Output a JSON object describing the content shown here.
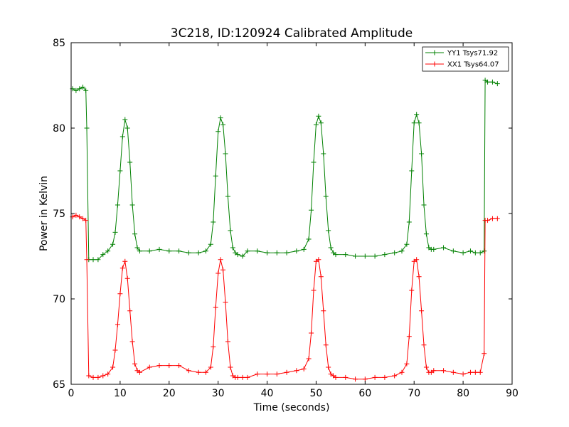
{
  "chart_data": {
    "type": "line",
    "title": "3C218, ID:120924 Calibrated Amplitude",
    "xlabel": "Time (seconds)",
    "ylabel": "Power in Kelvin",
    "xlim": [
      0,
      90
    ],
    "ylim": [
      65,
      85
    ],
    "xticks": [
      "0",
      "10",
      "20",
      "30",
      "40",
      "50",
      "60",
      "70",
      "80",
      "90"
    ],
    "yticks": [
      "65",
      "70",
      "75",
      "80",
      "85"
    ],
    "grid": false,
    "legend_position": "top-right",
    "series": [
      {
        "name": "YY1 Tsys71.92",
        "color": "#008000",
        "marker": "+",
        "x": [
          0.3,
          1,
          1.7,
          2.4,
          3,
          3.2,
          3.6,
          4.5,
          5.5,
          6.5,
          7.5,
          8.5,
          9,
          9.5,
          10,
          10.5,
          11,
          11.5,
          12,
          12.5,
          13,
          13.5,
          14,
          16,
          18,
          20,
          22,
          24,
          26,
          27.5,
          28.5,
          29,
          29.5,
          30,
          30.5,
          31,
          31.5,
          32,
          32.5,
          33,
          33.5,
          34,
          35,
          36,
          38,
          40,
          42,
          44,
          46,
          47.5,
          48.5,
          49,
          49.5,
          50,
          50.5,
          51,
          51.5,
          52,
          52.5,
          53,
          53.5,
          54,
          56,
          58,
          60,
          62,
          64,
          66,
          67.5,
          68.5,
          69,
          69.5,
          70,
          70.5,
          71,
          71.5,
          72,
          72.5,
          73,
          73.5,
          74,
          76,
          78,
          80,
          81.5,
          82.5,
          83.5,
          84.3,
          84.5,
          85,
          86,
          87
        ],
        "values": [
          82.3,
          82.2,
          82.3,
          82.4,
          82.2,
          80,
          72.3,
          72.3,
          72.3,
          72.6,
          72.8,
          73.2,
          73.9,
          75.5,
          77.5,
          79.5,
          80.5,
          80,
          78,
          75.5,
          73.8,
          73,
          72.8,
          72.8,
          72.9,
          72.8,
          72.8,
          72.7,
          72.7,
          72.8,
          73.2,
          74.5,
          77.2,
          79.8,
          80.6,
          80.2,
          78.5,
          76,
          74,
          73,
          72.7,
          72.6,
          72.5,
          72.8,
          72.8,
          72.7,
          72.7,
          72.7,
          72.8,
          72.9,
          73.5,
          75.2,
          78,
          80.2,
          80.7,
          80.3,
          78.5,
          76,
          74,
          73,
          72.7,
          72.6,
          72.6,
          72.5,
          72.5,
          72.5,
          72.6,
          72.7,
          72.8,
          73.2,
          74.5,
          77.5,
          80.3,
          80.8,
          80.3,
          78.5,
          75.5,
          73.8,
          73,
          72.9,
          72.9,
          73,
          72.8,
          72.7,
          72.8,
          72.7,
          72.7,
          72.8,
          82.8,
          82.7,
          82.7,
          82.6
        ]
      },
      {
        "name": "XX1 Tsys64.07",
        "color": "#ff0000",
        "marker": "+",
        "x": [
          0.3,
          1,
          1.7,
          2.4,
          3,
          3.2,
          3.6,
          4.5,
          5.5,
          6.5,
          7.5,
          8.5,
          9,
          9.5,
          10,
          10.5,
          11,
          11.5,
          12,
          12.5,
          13,
          13.5,
          14,
          16,
          18,
          20,
          22,
          24,
          26,
          27.5,
          28.5,
          29,
          29.5,
          30,
          30.5,
          31,
          31.5,
          32,
          32.5,
          33,
          33.5,
          34,
          35,
          36,
          38,
          40,
          42,
          44,
          46,
          47.5,
          48.5,
          49,
          49.5,
          50,
          50.5,
          51,
          51.5,
          52,
          52.5,
          53,
          53.5,
          54,
          56,
          58,
          60,
          62,
          64,
          66,
          67.5,
          68.5,
          69,
          69.5,
          70,
          70.5,
          71,
          71.5,
          72,
          72.5,
          73,
          73.5,
          74,
          76,
          78,
          80,
          81.5,
          82.5,
          83.5,
          84.3,
          84.5,
          85,
          86,
          87
        ],
        "values": [
          74.8,
          74.9,
          74.8,
          74.7,
          74.6,
          72.3,
          65.5,
          65.4,
          65.4,
          65.5,
          65.6,
          66,
          67,
          68.5,
          70.3,
          71.8,
          72.2,
          71.2,
          69.3,
          67.5,
          66.2,
          65.8,
          65.7,
          66,
          66.1,
          66.1,
          66.1,
          65.8,
          65.7,
          65.7,
          66,
          67.2,
          69.5,
          71.5,
          72.3,
          71.7,
          69.8,
          67.5,
          66,
          65.5,
          65.4,
          65.4,
          65.4,
          65.4,
          65.6,
          65.6,
          65.6,
          65.7,
          65.8,
          65.9,
          66.5,
          68,
          70.5,
          72.2,
          72.3,
          71.3,
          69.3,
          67.3,
          66,
          65.6,
          65.5,
          65.4,
          65.4,
          65.3,
          65.3,
          65.4,
          65.4,
          65.5,
          65.7,
          66.2,
          67.8,
          70.5,
          72.2,
          72.3,
          71.3,
          69.3,
          67.3,
          66,
          65.7,
          65.7,
          65.8,
          65.8,
          65.7,
          65.6,
          65.7,
          65.7,
          65.7,
          66.8,
          74.6,
          74.6,
          74.7,
          74.7
        ]
      }
    ]
  }
}
